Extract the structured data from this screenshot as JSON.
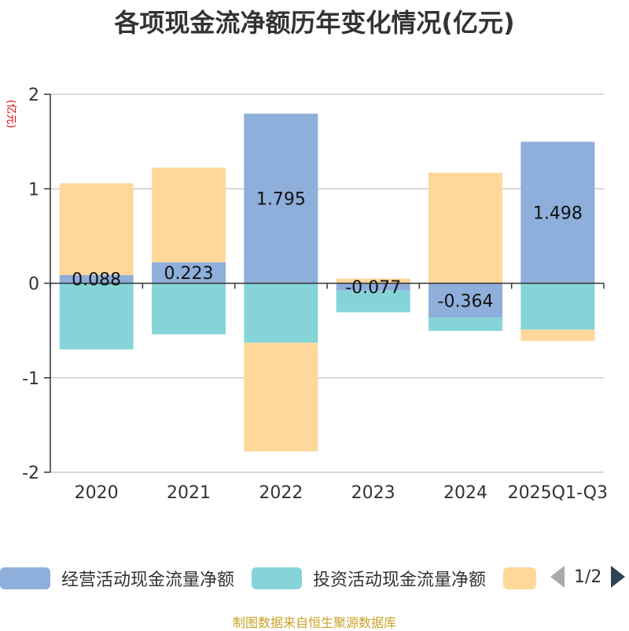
{
  "title": "各项现金流净额历年变化情况(亿元)",
  "source": "制图数据来自恒生聚源数据库",
  "colors": {
    "operating": "#8eaedb",
    "investing": "#85d5d8",
    "financing": "#fed89b",
    "axis": "#333333",
    "grid": "#cccccc",
    "ylabel": "#e00000"
  },
  "pager": {
    "text": "1/2"
  },
  "chart_data": {
    "type": "bar",
    "stacked": true,
    "ylabel": "(亿元)",
    "ylim": [
      -2,
      2
    ],
    "yticks": [
      2,
      1,
      0,
      -1,
      -2
    ],
    "categories": [
      "2020",
      "2021",
      "2022",
      "2023",
      "2024",
      "2025Q1-Q3"
    ],
    "legend_position": "bottom",
    "series": [
      {
        "name": "经营活动现金流量净额",
        "color_key": "operating",
        "values": [
          0.088,
          0.223,
          1.795,
          -0.077,
          -0.364,
          1.498
        ],
        "labels": [
          "0.088",
          "0.223",
          "1.795",
          "-0.077",
          "-0.364",
          "1.498"
        ]
      },
      {
        "name": "投资活动现金流量净额",
        "color_key": "investing",
        "values": [
          -0.7,
          -0.54,
          -0.63,
          -0.23,
          -0.14,
          -0.49
        ]
      },
      {
        "name": "",
        "color_key": "financing",
        "values": [
          0.97,
          1.0,
          -1.15,
          0.05,
          1.17,
          -0.12
        ]
      }
    ]
  }
}
